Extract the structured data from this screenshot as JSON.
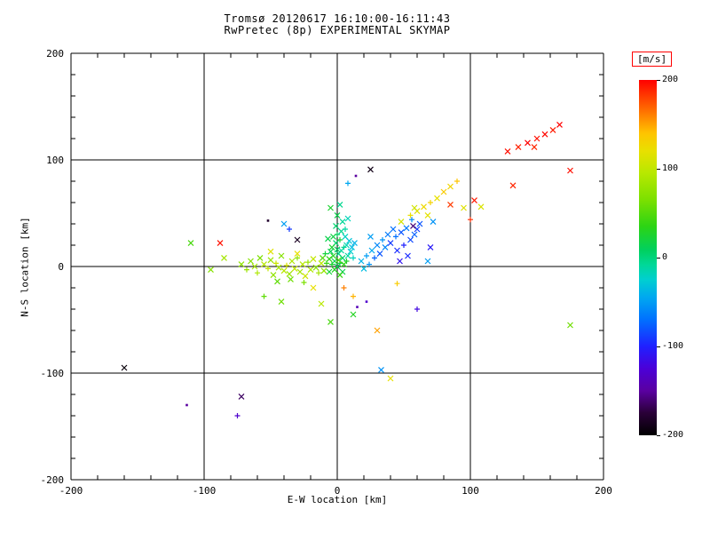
{
  "chart_data": {
    "type": "scatter",
    "title": "Tromsø 20120617 16:10:00-16:11:43",
    "subtitle": "RwPretec (8p) EXPERIMENTAL SKYMAP",
    "xlabel": "E-W location [km]",
    "ylabel": "N-S location [km]",
    "xlim": [
      -200,
      200
    ],
    "ylim": [
      -200,
      200
    ],
    "xticks": [
      -200,
      -100,
      0,
      100,
      200
    ],
    "yticks": [
      -200,
      -100,
      0,
      100,
      200
    ],
    "grid": true,
    "legend_position": "right-colorbar",
    "colorbar": {
      "label": "[m/s]",
      "ticks": [
        200,
        100,
        0,
        -100,
        -200
      ],
      "min": -200,
      "max": 200,
      "stops": [
        {
          "v": -200,
          "c": "#000000"
        },
        {
          "v": -175,
          "c": "#2a0038"
        },
        {
          "v": -150,
          "c": "#5a00a0"
        },
        {
          "v": -125,
          "c": "#4b00d8"
        },
        {
          "v": -100,
          "c": "#2020ff"
        },
        {
          "v": -70,
          "c": "#0070ff"
        },
        {
          "v": -45,
          "c": "#00a8f0"
        },
        {
          "v": -25,
          "c": "#00cfd0"
        },
        {
          "v": -8,
          "c": "#00d898"
        },
        {
          "v": 8,
          "c": "#00d060"
        },
        {
          "v": 35,
          "c": "#2cd414"
        },
        {
          "v": 65,
          "c": "#7ce000"
        },
        {
          "v": 95,
          "c": "#b8e800"
        },
        {
          "v": 120,
          "c": "#e8e000"
        },
        {
          "v": 140,
          "c": "#ffc400"
        },
        {
          "v": 165,
          "c": "#ff7000"
        },
        {
          "v": 185,
          "c": "#ff3000"
        },
        {
          "v": 200,
          "c": "#ff0000"
        }
      ]
    },
    "points": [
      [
        -72,
        2,
        75,
        "x"
      ],
      [
        -68,
        -3,
        80,
        "+"
      ],
      [
        -65,
        5,
        70,
        "x"
      ],
      [
        -62,
        0,
        85,
        "x"
      ],
      [
        -60,
        -6,
        90,
        "+"
      ],
      [
        -58,
        8,
        65,
        "x"
      ],
      [
        -55,
        2,
        95,
        "x"
      ],
      [
        -52,
        -2,
        100,
        "+"
      ],
      [
        -50,
        6,
        80,
        "x"
      ],
      [
        -48,
        -8,
        75,
        "x"
      ],
      [
        -46,
        3,
        105,
        "+"
      ],
      [
        -44,
        -1,
        85,
        "x"
      ],
      [
        -42,
        10,
        70,
        "x"
      ],
      [
        -40,
        -4,
        95,
        "x"
      ],
      [
        -38,
        1,
        110,
        "+"
      ],
      [
        -36,
        -7,
        80,
        "x"
      ],
      [
        -34,
        5,
        90,
        "x"
      ],
      [
        -32,
        -2,
        100,
        "x"
      ],
      [
        -30,
        8,
        75,
        "+"
      ],
      [
        -28,
        -5,
        85,
        "x"
      ],
      [
        -26,
        2,
        95,
        "x"
      ],
      [
        -24,
        -9,
        105,
        "x"
      ],
      [
        -22,
        4,
        80,
        "+"
      ],
      [
        -20,
        -3,
        90,
        "x"
      ],
      [
        -18,
        7,
        100,
        "x"
      ],
      [
        -16,
        -1,
        70,
        "x"
      ],
      [
        -14,
        -6,
        85,
        "+"
      ],
      [
        -12,
        3,
        95,
        "x"
      ],
      [
        -10,
        -4,
        75,
        "x"
      ],
      [
        -35,
        -12,
        60,
        "x"
      ],
      [
        -45,
        -14,
        55,
        "x"
      ],
      [
        -25,
        -15,
        65,
        "+"
      ],
      [
        -30,
        12,
        120,
        "x"
      ],
      [
        -50,
        14,
        115,
        "x"
      ],
      [
        -95,
        -3,
        70,
        "x"
      ],
      [
        -85,
        8,
        85,
        "x"
      ],
      [
        0,
        0,
        10,
        "x"
      ],
      [
        2,
        3,
        20,
        "+"
      ],
      [
        -2,
        5,
        15,
        "x"
      ],
      [
        4,
        8,
        5,
        "x"
      ],
      [
        -4,
        2,
        25,
        "+"
      ],
      [
        1,
        12,
        0,
        "x"
      ],
      [
        3,
        15,
        -10,
        "x"
      ],
      [
        -3,
        10,
        30,
        "x"
      ],
      [
        5,
        18,
        -5,
        "+"
      ],
      [
        -5,
        14,
        10,
        "x"
      ],
      [
        7,
        20,
        -15,
        "x"
      ],
      [
        -1,
        22,
        5,
        "x"
      ],
      [
        2,
        25,
        20,
        "+"
      ],
      [
        6,
        28,
        -20,
        "x"
      ],
      [
        -6,
        7,
        35,
        "x"
      ],
      [
        8,
        10,
        -10,
        "x"
      ],
      [
        -8,
        3,
        40,
        "+"
      ],
      [
        10,
        14,
        -25,
        "x"
      ],
      [
        -2,
        -3,
        30,
        "x"
      ],
      [
        4,
        -5,
        15,
        "x"
      ],
      [
        0,
        30,
        10,
        "+"
      ],
      [
        3,
        33,
        -5,
        "x"
      ],
      [
        -4,
        18,
        25,
        "x"
      ],
      [
        9,
        24,
        -30,
        "x"
      ],
      [
        12,
        8,
        -20,
        "+"
      ],
      [
        -7,
        26,
        15,
        "x"
      ],
      [
        1,
        6,
        45,
        "x"
      ],
      [
        5,
        2,
        35,
        "x"
      ],
      [
        -9,
        12,
        20,
        "+"
      ],
      [
        11,
        18,
        -35,
        "x"
      ],
      [
        0,
        16,
        8,
        "x"
      ],
      [
        -3,
        28,
        18,
        "x"
      ],
      [
        7,
        5,
        28,
        "+"
      ],
      [
        2,
        -8,
        38,
        "x"
      ],
      [
        -6,
        -5,
        22,
        "x"
      ],
      [
        13,
        22,
        -40,
        "x"
      ],
      [
        -11,
        8,
        48,
        "x"
      ],
      [
        6,
        35,
        -12,
        "+"
      ],
      [
        -1,
        38,
        4,
        "x"
      ],
      [
        4,
        42,
        -8,
        "x"
      ],
      [
        0,
        48,
        15,
        "x"
      ],
      [
        8,
        45,
        -18,
        "x"
      ],
      [
        -5,
        55,
        25,
        "x"
      ],
      [
        2,
        58,
        -5,
        "x"
      ],
      [
        8,
        78,
        -45,
        "+"
      ],
      [
        14,
        85,
        -150,
        "."
      ],
      [
        25,
        91,
        -190,
        "x"
      ],
      [
        -88,
        22,
        195,
        "x"
      ],
      [
        18,
        5,
        -40,
        "x"
      ],
      [
        22,
        10,
        -50,
        "+"
      ],
      [
        26,
        15,
        -45,
        "x"
      ],
      [
        30,
        20,
        -60,
        "x"
      ],
      [
        34,
        25,
        -55,
        "+"
      ],
      [
        38,
        30,
        -65,
        "x"
      ],
      [
        42,
        35,
        -70,
        "x"
      ],
      [
        25,
        28,
        -50,
        "x"
      ],
      [
        28,
        8,
        -75,
        "+"
      ],
      [
        32,
        12,
        -80,
        "x"
      ],
      [
        36,
        18,
        -60,
        "x"
      ],
      [
        40,
        22,
        -90,
        "x"
      ],
      [
        44,
        28,
        -70,
        "+"
      ],
      [
        48,
        32,
        -80,
        "x"
      ],
      [
        52,
        36,
        -65,
        "x"
      ],
      [
        45,
        15,
        -95,
        "x"
      ],
      [
        50,
        20,
        -100,
        "+"
      ],
      [
        55,
        25,
        -85,
        "x"
      ],
      [
        58,
        30,
        -75,
        "x"
      ],
      [
        60,
        35,
        -90,
        "x"
      ],
      [
        20,
        -2,
        -35,
        "x"
      ],
      [
        24,
        2,
        -55,
        "+"
      ],
      [
        47,
        5,
        -110,
        "x"
      ],
      [
        53,
        10,
        -95,
        "x"
      ],
      [
        62,
        40,
        -80,
        "x"
      ],
      [
        56,
        44,
        -60,
        "+"
      ],
      [
        70,
        18,
        -105,
        "x"
      ],
      [
        68,
        5,
        -50,
        "x"
      ],
      [
        72,
        42,
        -55,
        "x"
      ],
      [
        57,
        38,
        -160,
        "x"
      ],
      [
        48,
        42,
        110,
        "x"
      ],
      [
        55,
        48,
        120,
        "+"
      ],
      [
        60,
        52,
        115,
        "x"
      ],
      [
        65,
        56,
        125,
        "x"
      ],
      [
        70,
        60,
        130,
        "+"
      ],
      [
        75,
        64,
        120,
        "x"
      ],
      [
        80,
        70,
        135,
        "x"
      ],
      [
        85,
        75,
        128,
        "x"
      ],
      [
        90,
        80,
        140,
        "+"
      ],
      [
        68,
        48,
        118,
        "x"
      ],
      [
        58,
        55,
        108,
        "x"
      ],
      [
        95,
        55,
        115,
        "x"
      ],
      [
        108,
        56,
        112,
        "x"
      ],
      [
        128,
        108,
        195,
        "x"
      ],
      [
        136,
        112,
        190,
        "x"
      ],
      [
        143,
        116,
        200,
        "x"
      ],
      [
        150,
        120,
        195,
        "x"
      ],
      [
        156,
        124,
        198,
        "x"
      ],
      [
        162,
        128,
        192,
        "x"
      ],
      [
        167,
        133,
        200,
        "x"
      ],
      [
        148,
        112,
        188,
        "x"
      ],
      [
        175,
        90,
        195,
        "x"
      ],
      [
        132,
        76,
        188,
        "x"
      ],
      [
        103,
        62,
        192,
        "x"
      ],
      [
        85,
        58,
        182,
        "x"
      ],
      [
        100,
        44,
        186,
        "+"
      ],
      [
        -160,
        -95,
        -195,
        "x"
      ],
      [
        -113,
        -130,
        -150,
        "."
      ],
      [
        -75,
        -140,
        -130,
        "+"
      ],
      [
        -72,
        -122,
        -165,
        "x"
      ],
      [
        40,
        -105,
        120,
        "x"
      ],
      [
        33,
        -97,
        -55,
        "x"
      ],
      [
        30,
        -60,
        150,
        "x"
      ],
      [
        175,
        -55,
        60,
        "x"
      ],
      [
        -110,
        22,
        45,
        "x"
      ],
      [
        -30,
        25,
        -185,
        "x"
      ],
      [
        -40,
        40,
        -50,
        "x"
      ],
      [
        -36,
        35,
        -90,
        "+"
      ],
      [
        -52,
        43,
        -180,
        "."
      ],
      [
        15,
        -38,
        -140,
        "."
      ],
      [
        22,
        -33,
        -130,
        "."
      ],
      [
        60,
        -40,
        -120,
        "+"
      ],
      [
        -42,
        -33,
        60,
        "x"
      ],
      [
        -55,
        -28,
        55,
        "+"
      ],
      [
        -5,
        -52,
        45,
        "x"
      ],
      [
        12,
        -45,
        30,
        "x"
      ],
      [
        45,
        -16,
        135,
        "+"
      ],
      [
        5,
        -20,
        160,
        "+"
      ],
      [
        12,
        -28,
        145,
        "+"
      ],
      [
        -18,
        -20,
        120,
        "x"
      ],
      [
        -12,
        -35,
        95,
        "x"
      ]
    ]
  }
}
